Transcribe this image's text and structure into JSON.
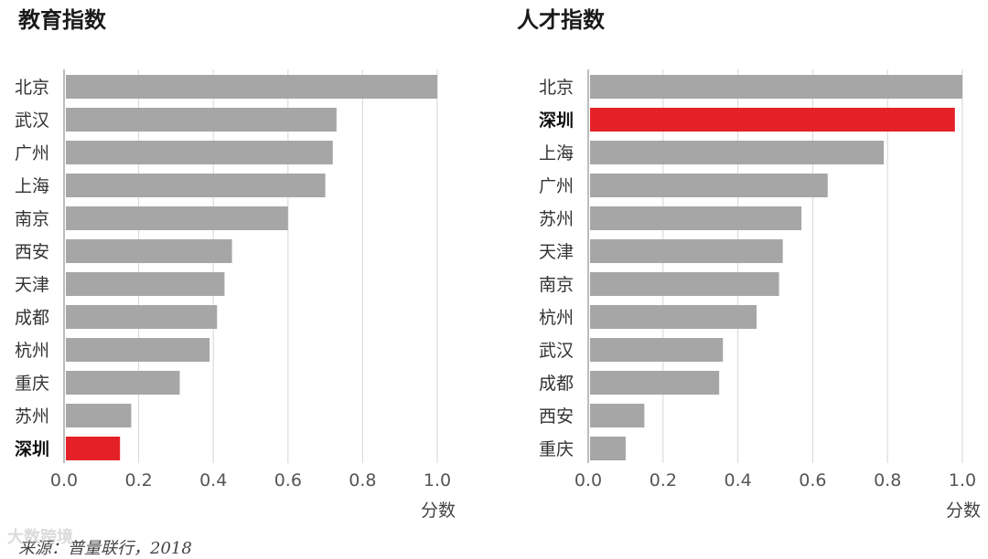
{
  "colors": {
    "bar": "#a6a6a6",
    "highlight": "#e52128"
  },
  "chart_data": [
    {
      "type": "bar",
      "orientation": "horizontal",
      "title": "教育指数",
      "xlabel": "分数",
      "xlim": [
        0,
        1
      ],
      "ticks": [
        "0.0",
        "0.2",
        "0.4",
        "0.6",
        "0.8",
        "1.0"
      ],
      "categories": [
        "北京",
        "武汉",
        "广州",
        "上海",
        "南京",
        "西安",
        "天津",
        "成都",
        "杭州",
        "重庆",
        "苏州",
        "深圳"
      ],
      "values": [
        1.0,
        0.73,
        0.72,
        0.7,
        0.6,
        0.45,
        0.43,
        0.41,
        0.39,
        0.31,
        0.18,
        0.15
      ],
      "highlight": "深圳",
      "grid": true
    },
    {
      "type": "bar",
      "orientation": "horizontal",
      "title": "人才指数",
      "xlabel": "分数",
      "xlim": [
        0,
        1
      ],
      "ticks": [
        "0.0",
        "0.2",
        "0.4",
        "0.6",
        "0.8",
        "1.0"
      ],
      "categories": [
        "北京",
        "深圳",
        "上海",
        "广州",
        "苏州",
        "天津",
        "南京",
        "杭州",
        "武汉",
        "成都",
        "西安",
        "重庆"
      ],
      "values": [
        1.0,
        0.98,
        0.79,
        0.64,
        0.57,
        0.52,
        0.51,
        0.45,
        0.36,
        0.35,
        0.15,
        0.1
      ],
      "highlight": "深圳",
      "grid": true
    }
  ],
  "source": "来源：普量联行，2018",
  "watermark": "大数跨境"
}
